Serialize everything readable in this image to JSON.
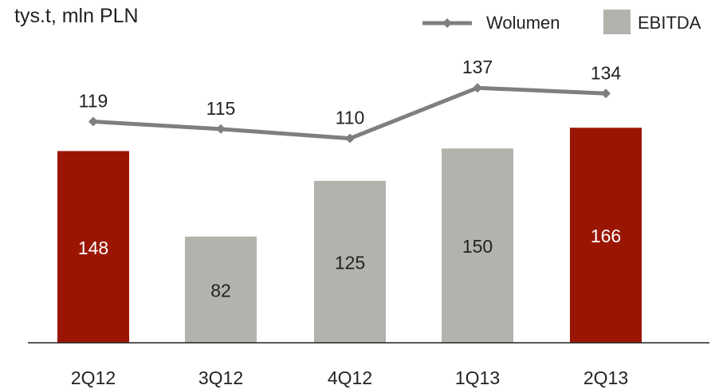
{
  "chart_data": {
    "type": "bar",
    "unit_label": "tys.t, mln PLN",
    "categories": [
      "2Q12",
      "3Q12",
      "4Q12",
      "1Q13",
      "2Q13"
    ],
    "series": [
      {
        "name": "EBITDA",
        "type": "bar",
        "values": [
          148,
          82,
          125,
          150,
          166
        ],
        "colors": [
          "#9b1503",
          "#b3b3ad",
          "#b3b3ad",
          "#b3b3ad",
          "#9b1503"
        ]
      },
      {
        "name": "Wolumen",
        "type": "line",
        "values": [
          119,
          115,
          110,
          137,
          134
        ],
        "color": "#7f7f7f"
      }
    ],
    "legend": "top-right",
    "grid": false
  }
}
